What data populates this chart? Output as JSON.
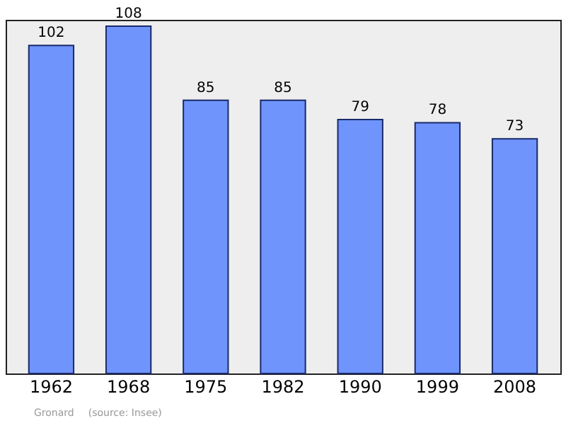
{
  "chart_data": {
    "type": "bar",
    "categories": [
      "1962",
      "1968",
      "1975",
      "1982",
      "1990",
      "1999",
      "2008"
    ],
    "values": [
      102,
      108,
      85,
      85,
      79,
      78,
      73
    ],
    "color": "#6f94fb",
    "data_labels": true,
    "annotations": [
      "Gronard",
      "(source: Insee)"
    ]
  }
}
